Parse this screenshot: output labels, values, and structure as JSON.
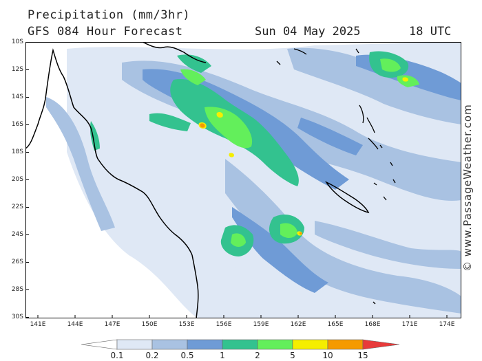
{
  "header": {
    "title": "Precipitation (mm/3hr)",
    "subtitle": "GFS 084 Hour Forecast",
    "date": "Sun 04 May 2025",
    "time": "18 UTC"
  },
  "credit": "© www.PassageWeather.com",
  "map": {
    "lat_labels": [
      "10S",
      "12S",
      "14S",
      "16S",
      "18S",
      "20S",
      "22S",
      "24S",
      "26S",
      "28S",
      "30S"
    ],
    "lon_labels": [
      "141E",
      "144E",
      "147E",
      "150E",
      "153E",
      "156E",
      "159E",
      "162E",
      "165E",
      "168E",
      "171E",
      "174E"
    ],
    "lat_range": [
      -30,
      -10
    ],
    "lon_range": [
      140,
      175
    ],
    "land_outline_color": "#000000",
    "ocean_background": "#ffffff"
  },
  "legend": {
    "thresholds": [
      "0.1",
      "0.2",
      "0.5",
      "1",
      "2",
      "5",
      "10",
      "15"
    ],
    "colors": [
      "#ffffff",
      "#dfe8f5",
      "#a9c2e2",
      "#6f9bd6",
      "#33c28f",
      "#63ef5b",
      "#f5ee00",
      "#f59a00",
      "#e83a3a"
    ]
  }
}
